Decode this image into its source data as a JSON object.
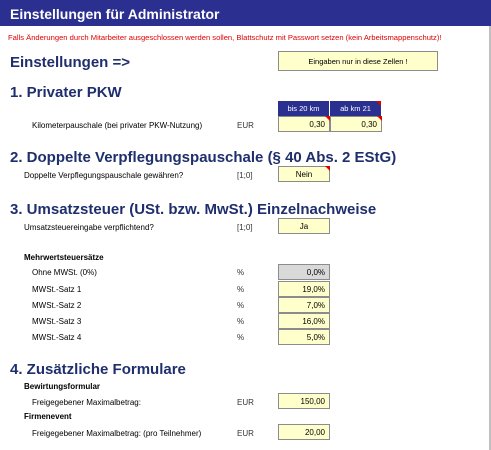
{
  "title": "Einstellungen für Administrator",
  "warning": "Falls Änderungen durch Mitarbeiter ausgeschlossen werden sollen, Blattschutz mit Passwort setzen (kein Arbeitsmappenschutz)!",
  "settings_heading": "Einstellungen =>",
  "input_hint": "Eingaben nur in diese Zellen !",
  "section1": {
    "heading": "1. Privater PKW",
    "col1": "bis 20 km",
    "col2": "ab km 21",
    "row_label": "Kilometerpauschale (bei privater PKW-Nutzung)",
    "unit": "EUR",
    "value1": "0,30",
    "value2": "0,30"
  },
  "section2": {
    "heading": "2. Doppelte Verpflegungspauschale (§ 40 Abs. 2 EStG)",
    "row_label": "Doppelte Verpflegungspauschale gewähren?",
    "unit": "[1;0]",
    "value": "Nein"
  },
  "section3": {
    "heading": "3. Umsatzsteuer (USt. bzw. MwSt.) Einzelnachweise",
    "row_label": "Umsatzsteuereingabe verpflichtend?",
    "unit": "[1;0]",
    "value": "Ja",
    "rates_heading": "Mehrwertsteuersätze",
    "rates": [
      {
        "label": "Ohne MWSt. (0%)",
        "unit": "%",
        "value": "0,0%"
      },
      {
        "label": "MWSt.-Satz 1",
        "unit": "%",
        "value": "19,0%"
      },
      {
        "label": "MWSt.-Satz 2",
        "unit": "%",
        "value": "7,0%"
      },
      {
        "label": "MWSt.-Satz 3",
        "unit": "%",
        "value": "16,0%"
      },
      {
        "label": "MWSt.-Satz 4",
        "unit": "%",
        "value": "5,0%"
      }
    ]
  },
  "section4": {
    "heading": "4. Zusätzliche Formulare",
    "bewirtung_heading": "Bewirtungsformular",
    "bewirtung_label": "Freigegebener Maximalbetrag:",
    "bewirtung_unit": "EUR",
    "bewirtung_value": "150,00",
    "event_heading": "Firmenevent",
    "event_label": "Freigegebener Maximalbetrag: (pro Teilnehmer)",
    "event_unit": "EUR",
    "event_value": "20,00"
  },
  "colors": {
    "title_bg": "#2b2f8f",
    "heading_text": "#1f2f6d",
    "input_cell": "#ffffcc",
    "warning_text": "#e00000"
  }
}
